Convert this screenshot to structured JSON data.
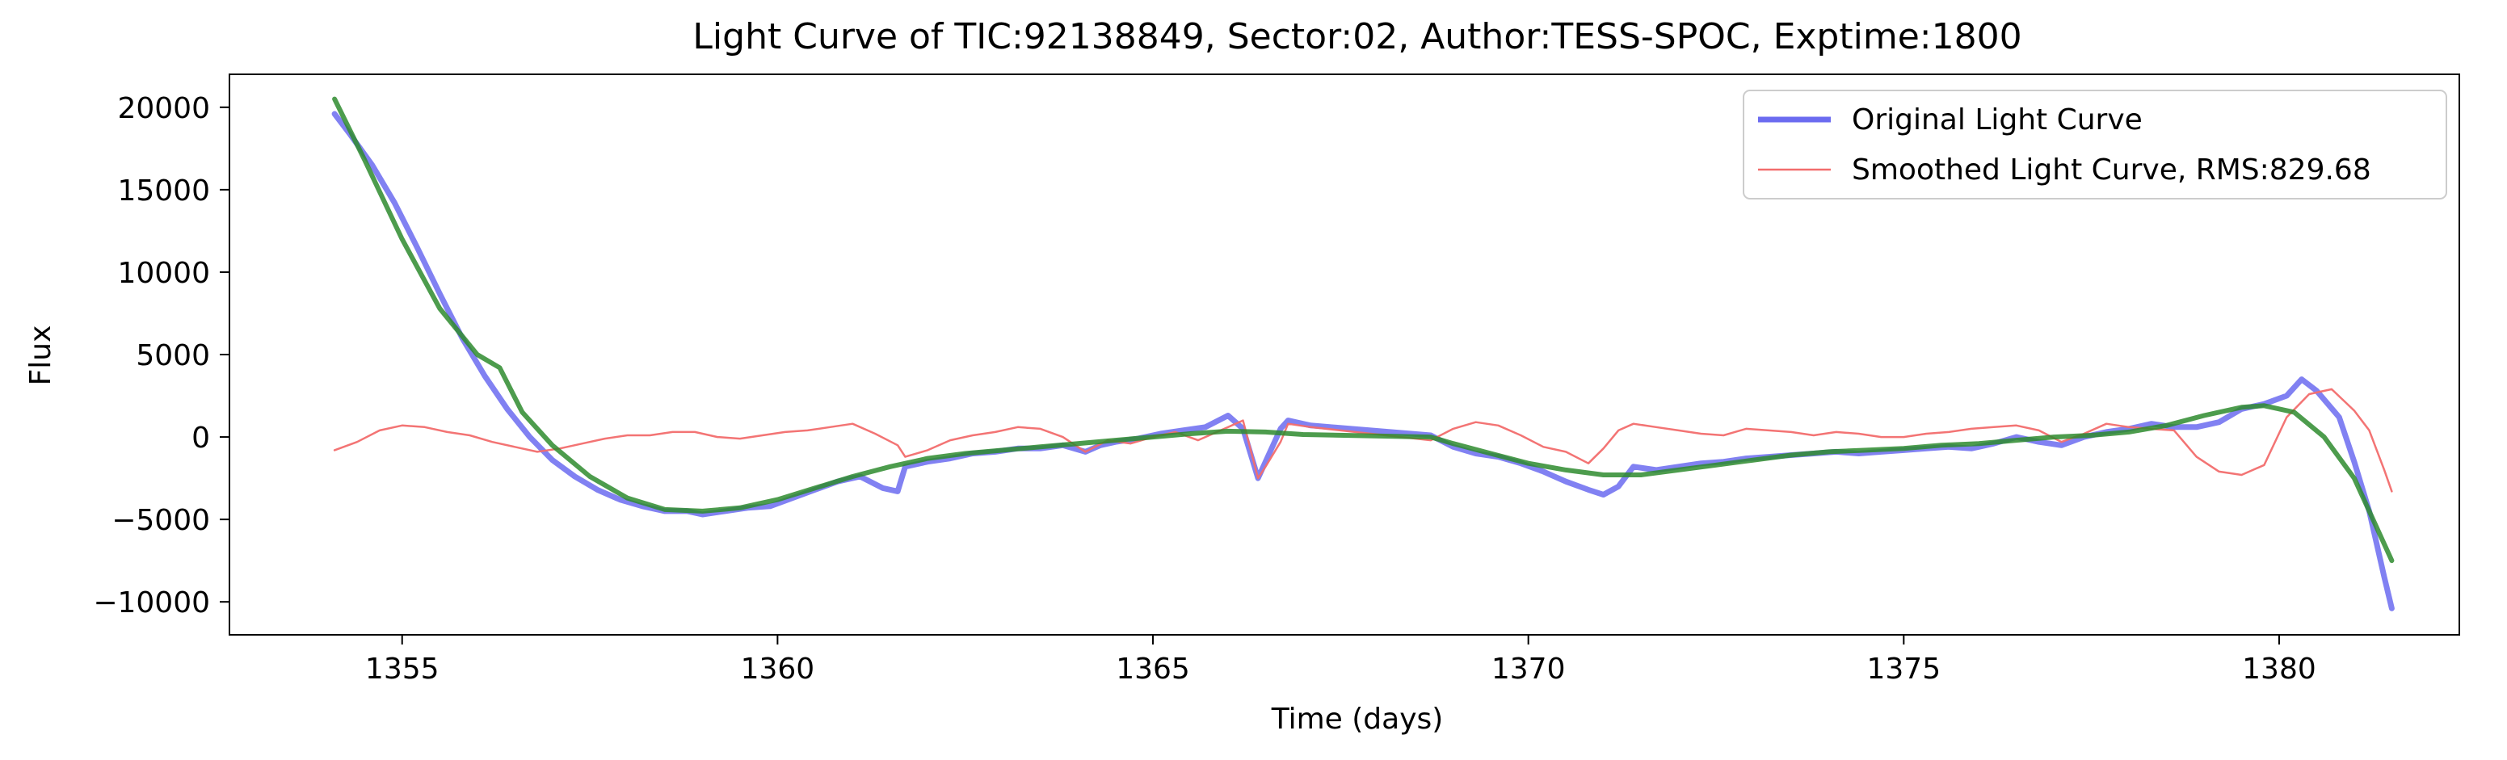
{
  "chart_data": {
    "type": "line",
    "title": "Light Curve of TIC:92138849, Sector:02, Author:TESS-SPOC, Exptime:1800",
    "xlabel": "Time (days)",
    "ylabel": "Flux",
    "xlim": [
      1352.7,
      1382.4
    ],
    "ylim": [
      -12000,
      22000
    ],
    "xticks": [
      1355,
      1360,
      1365,
      1370,
      1375,
      1380
    ],
    "yticks": [
      -10000,
      -5000,
      0,
      5000,
      10000,
      15000,
      20000
    ],
    "xtick_labels": [
      "1355",
      "1360",
      "1365",
      "1370",
      "1375",
      "1380"
    ],
    "ytick_labels": [
      "−10000",
      "−5000",
      "0",
      "5000",
      "10000",
      "15000",
      "20000"
    ],
    "grid": false,
    "legend_position": "top-right",
    "series": [
      {
        "name": "Original Light Curve",
        "color": "#6b6bf0",
        "x": [
          1354.1,
          1354.3,
          1354.6,
          1354.9,
          1355.2,
          1355.5,
          1355.8,
          1356.1,
          1356.4,
          1356.7,
          1357.0,
          1357.3,
          1357.6,
          1357.9,
          1358.2,
          1358.5,
          1358.8,
          1359.0,
          1359.3,
          1359.6,
          1359.9,
          1360.2,
          1360.5,
          1360.8,
          1361.1,
          1361.4,
          1361.6,
          1361.7,
          1362.0,
          1362.3,
          1362.6,
          1362.9,
          1363.2,
          1363.5,
          1363.8,
          1364.1,
          1364.3,
          1364.5,
          1364.8,
          1365.1,
          1365.4,
          1365.7,
          1366.0,
          1366.2,
          1366.4,
          1366.5,
          1366.7,
          1366.8,
          1367.1,
          1368.7,
          1369.0,
          1369.3,
          1369.6,
          1369.9,
          1370.2,
          1370.5,
          1370.8,
          1371.0,
          1371.2,
          1371.4,
          1371.7,
          1372.0,
          1372.3,
          1372.6,
          1372.9,
          1373.2,
          1373.5,
          1373.8,
          1374.1,
          1374.4,
          1374.7,
          1375.0,
          1375.3,
          1375.6,
          1375.9,
          1376.2,
          1376.5,
          1376.8,
          1377.1,
          1377.4,
          1377.7,
          1378.0,
          1378.3,
          1378.6,
          1378.9,
          1379.2,
          1379.5,
          1379.8,
          1380.1,
          1380.3,
          1380.5,
          1380.8,
          1381.0,
          1381.2,
          1381.4,
          1381.5
        ],
        "y": [
          19600,
          18400,
          16500,
          14200,
          11500,
          8700,
          6000,
          3700,
          1700,
          0,
          -1400,
          -2400,
          -3200,
          -3800,
          -4200,
          -4500,
          -4500,
          -4700,
          -4500,
          -4300,
          -4200,
          -3700,
          -3200,
          -2700,
          -2400,
          -3100,
          -3300,
          -1800,
          -1500,
          -1300,
          -1000,
          -900,
          -700,
          -700,
          -500,
          -900,
          -500,
          -300,
          -100,
          200,
          400,
          600,
          1300,
          500,
          -2500,
          -1500,
          500,
          1000,
          700,
          100,
          -600,
          -1000,
          -1200,
          -1600,
          -2100,
          -2700,
          -3200,
          -3500,
          -3000,
          -1800,
          -2000,
          -1800,
          -1600,
          -1500,
          -1300,
          -1200,
          -1100,
          -1000,
          -900,
          -1000,
          -900,
          -800,
          -700,
          -600,
          -700,
          -400,
          0,
          -300,
          -500,
          0,
          300,
          500,
          800,
          600,
          600,
          900,
          1700,
          2000,
          2500,
          3500,
          2800,
          1200,
          -1500,
          -4500,
          -8500,
          -10400
        ]
      },
      {
        "name": "Smoothed Light Curve, RMS:829.68",
        "color": "#f26d6d",
        "x": [
          1354.1,
          1354.4,
          1354.7,
          1355.0,
          1355.3,
          1355.6,
          1355.9,
          1356.2,
          1356.5,
          1356.8,
          1357.1,
          1357.4,
          1357.7,
          1358.0,
          1358.3,
          1358.6,
          1358.9,
          1359.2,
          1359.5,
          1359.8,
          1360.1,
          1360.4,
          1360.7,
          1361.0,
          1361.3,
          1361.6,
          1361.7,
          1362.0,
          1362.3,
          1362.6,
          1362.9,
          1363.2,
          1363.5,
          1363.8,
          1364.1,
          1364.4,
          1364.7,
          1365.0,
          1365.3,
          1365.6,
          1365.9,
          1366.2,
          1366.4,
          1366.5,
          1366.7,
          1366.8,
          1367.1,
          1368.7,
          1369.0,
          1369.3,
          1369.6,
          1369.9,
          1370.2,
          1370.5,
          1370.8,
          1371.0,
          1371.2,
          1371.4,
          1371.7,
          1372.0,
          1372.3,
          1372.6,
          1372.9,
          1373.2,
          1373.5,
          1373.8,
          1374.1,
          1374.4,
          1374.7,
          1375.0,
          1375.3,
          1375.6,
          1375.9,
          1376.2,
          1376.5,
          1376.8,
          1377.1,
          1377.4,
          1377.7,
          1378.0,
          1378.3,
          1378.6,
          1378.9,
          1379.2,
          1379.5,
          1379.8,
          1380.1,
          1380.4,
          1380.7,
          1381.0,
          1381.2,
          1381.4,
          1381.5
        ],
        "y": [
          -800,
          -300,
          400,
          700,
          600,
          300,
          100,
          -300,
          -600,
          -900,
          -700,
          -400,
          -100,
          100,
          100,
          300,
          300,
          0,
          -100,
          100,
          300,
          400,
          600,
          800,
          200,
          -500,
          -1200,
          -800,
          -200,
          100,
          300,
          600,
          500,
          0,
          -900,
          -200,
          -400,
          0,
          300,
          -200,
          400,
          1000,
          -2500,
          -1800,
          -300,
          800,
          600,
          -200,
          500,
          900,
          700,
          100,
          -600,
          -900,
          -1600,
          -700,
          400,
          800,
          600,
          400,
          200,
          100,
          500,
          400,
          300,
          100,
          300,
          200,
          0,
          0,
          200,
          300,
          500,
          600,
          700,
          400,
          -300,
          200,
          800,
          600,
          500,
          400,
          -1200,
          -2100,
          -2300,
          -1700,
          1200,
          2600,
          2900,
          1600,
          400,
          -2000,
          -3300
        ]
      },
      {
        "name": "",
        "color": "#2e8b2e",
        "x": [
          1354.1,
          1354.5,
          1355.0,
          1355.5,
          1356.0,
          1356.3,
          1356.6,
          1357.0,
          1357.5,
          1358.0,
          1358.5,
          1359.0,
          1359.5,
          1360.0,
          1360.5,
          1361.0,
          1361.5,
          1362.0,
          1362.5,
          1363.0,
          1363.5,
          1364.0,
          1364.5,
          1365.0,
          1365.5,
          1366.0,
          1366.5,
          1367.0,
          1368.7,
          1369.0,
          1369.5,
          1370.0,
          1370.5,
          1371.0,
          1371.5,
          1372.0,
          1372.5,
          1373.0,
          1373.5,
          1374.0,
          1374.5,
          1375.0,
          1375.5,
          1376.0,
          1376.5,
          1377.0,
          1377.5,
          1378.0,
          1378.5,
          1379.0,
          1379.5,
          1379.8,
          1380.2,
          1380.6,
          1381.0,
          1381.5
        ],
        "y": [
          20500,
          16800,
          12000,
          7800,
          5000,
          4200,
          1500,
          -500,
          -2400,
          -3700,
          -4400,
          -4500,
          -4300,
          -3800,
          -3100,
          -2400,
          -1800,
          -1300,
          -1000,
          -800,
          -600,
          -400,
          -200,
          0,
          200,
          350,
          300,
          150,
          0,
          -400,
          -1000,
          -1600,
          -2000,
          -2300,
          -2300,
          -2000,
          -1700,
          -1400,
          -1100,
          -900,
          -800,
          -700,
          -500,
          -400,
          -200,
          0,
          100,
          300,
          700,
          1300,
          1800,
          1900,
          1500,
          0,
          -2500,
          -7500
        ]
      }
    ],
    "annotation": ""
  }
}
